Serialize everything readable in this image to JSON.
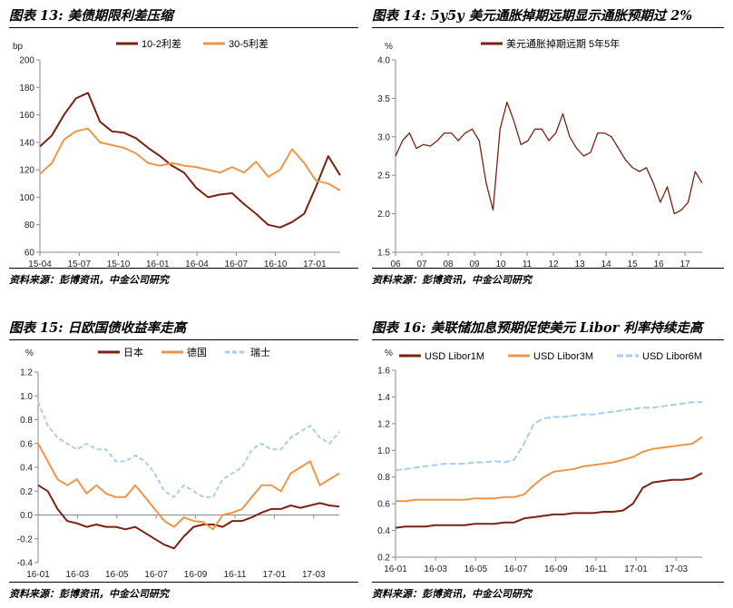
{
  "colors": {
    "dark": "#7b2210",
    "orange": "#f09448",
    "light_blue": "#a9cdec",
    "axis": "#888888"
  },
  "source_label": "资料来源：彭博资讯，中金公司研究",
  "chart_data": [
    {
      "id": "fig13",
      "type": "line",
      "title": "图表 13: 美债期限利差压缩",
      "unit_label": "bp",
      "ylim": [
        60,
        200
      ],
      "yticks": [
        60,
        80,
        100,
        120,
        140,
        160,
        180,
        200
      ],
      "x_tick_labels": [
        "15-04",
        "15-07",
        "15-10",
        "16-01",
        "16-04",
        "16-07",
        "16-10",
        "17-01"
      ],
      "x_count": 26,
      "series": [
        {
          "name": "10-2利差",
          "color": "#7b2210",
          "values": [
            137,
            145,
            160,
            172,
            176,
            155,
            148,
            147,
            143,
            136,
            130,
            123,
            118,
            107,
            100,
            102,
            103,
            95,
            88,
            80,
            78,
            82,
            88,
            108,
            130,
            116
          ]
        },
        {
          "name": "30-5利差",
          "color": "#f09448",
          "values": [
            117,
            125,
            142,
            148,
            150,
            140,
            138,
            136,
            132,
            125,
            123,
            125,
            123,
            122,
            120,
            118,
            122,
            118,
            126,
            115,
            120,
            135,
            125,
            112,
            110,
            105
          ]
        }
      ]
    },
    {
      "id": "fig14",
      "type": "line",
      "title": "图表 14: 5y5y 美元通胀掉期远期显示通胀预期过 2%",
      "unit_label": "%",
      "ylim": [
        1.5,
        4.0
      ],
      "yticks": [
        1.5,
        2.0,
        2.5,
        3.0,
        3.5,
        4.0
      ],
      "x_tick_labels": [
        "06",
        "07",
        "08",
        "09",
        "10",
        "11",
        "12",
        "13",
        "14",
        "15",
        "16",
        "17"
      ],
      "x_count": 45,
      "series": [
        {
          "name": "美元通胀掉期远期 5年5年",
          "color": "#7b2210",
          "values": [
            2.75,
            2.95,
            3.05,
            2.85,
            2.9,
            2.88,
            2.95,
            3.05,
            3.05,
            2.95,
            3.05,
            3.1,
            2.95,
            2.4,
            2.05,
            3.1,
            3.45,
            3.2,
            2.9,
            2.95,
            3.1,
            3.1,
            2.95,
            3.05,
            3.3,
            3.0,
            2.85,
            2.75,
            2.8,
            3.05,
            3.05,
            3.0,
            2.85,
            2.7,
            2.6,
            2.55,
            2.6,
            2.4,
            2.15,
            2.35,
            2.0,
            2.05,
            2.15,
            2.55,
            2.4
          ]
        }
      ]
    },
    {
      "id": "fig15",
      "type": "line",
      "title": "图表 15: 日欧国债收益率走高",
      "unit_label": "%",
      "ylim": [
        -0.4,
        1.2
      ],
      "yticks": [
        -0.4,
        -0.2,
        0.0,
        0.2,
        0.4,
        0.6,
        0.8,
        1.0,
        1.2
      ],
      "x_tick_labels": [
        "16-01",
        "16-03",
        "16-05",
        "16-07",
        "16-09",
        "16-11",
        "17-01",
        "17-03"
      ],
      "x_count": 32,
      "series": [
        {
          "name": "日本",
          "color": "#7b2210",
          "values": [
            0.25,
            0.2,
            0.05,
            -0.05,
            -0.07,
            -0.1,
            -0.08,
            -0.1,
            -0.1,
            -0.12,
            -0.1,
            -0.15,
            -0.2,
            -0.25,
            -0.28,
            -0.18,
            -0.1,
            -0.08,
            -0.08,
            -0.1,
            -0.05,
            -0.05,
            -0.02,
            0.02,
            0.05,
            0.05,
            0.08,
            0.06,
            0.08,
            0.1,
            0.08,
            0.07
          ]
        },
        {
          "name": "德国",
          "color": "#f09448",
          "values": [
            0.6,
            0.45,
            0.3,
            0.25,
            0.3,
            0.18,
            0.25,
            0.18,
            0.15,
            0.15,
            0.25,
            0.15,
            0.05,
            -0.05,
            -0.1,
            -0.02,
            -0.05,
            -0.06,
            -0.12,
            0.0,
            0.02,
            0.05,
            0.15,
            0.25,
            0.25,
            0.2,
            0.35,
            0.4,
            0.45,
            0.25,
            0.3,
            0.35
          ]
        },
        {
          "name": "瑞士",
          "color": "#a9cdec",
          "values": [
            0.95,
            0.75,
            0.65,
            0.6,
            0.55,
            0.6,
            0.55,
            0.55,
            0.45,
            0.45,
            0.5,
            0.45,
            0.35,
            0.2,
            0.15,
            0.25,
            0.2,
            0.15,
            0.15,
            0.3,
            0.35,
            0.4,
            0.55,
            0.6,
            0.55,
            0.55,
            0.65,
            0.7,
            0.75,
            0.65,
            0.6,
            0.7
          ]
        }
      ]
    },
    {
      "id": "fig16",
      "type": "line",
      "title": "图表 16: 美联储加息预期促使美元 Libor 利率持续走高",
      "unit_label": "%",
      "ylim": [
        0.2,
        1.6
      ],
      "yticks": [
        0.2,
        0.4,
        0.6,
        0.8,
        1.0,
        1.2,
        1.4,
        1.6
      ],
      "x_tick_labels": [
        "16-01",
        "16-03",
        "16-05",
        "16-07",
        "16-09",
        "16-11",
        "17-01",
        "17-03"
      ],
      "x_count": 32,
      "series": [
        {
          "name": "USD Libor1M",
          "color": "#7b2210",
          "values": [
            0.42,
            0.43,
            0.43,
            0.43,
            0.44,
            0.44,
            0.44,
            0.44,
            0.45,
            0.45,
            0.45,
            0.46,
            0.46,
            0.49,
            0.5,
            0.51,
            0.52,
            0.52,
            0.53,
            0.53,
            0.53,
            0.54,
            0.54,
            0.55,
            0.6,
            0.72,
            0.76,
            0.77,
            0.78,
            0.78,
            0.79,
            0.83
          ]
        },
        {
          "name": "USD Libor3M",
          "color": "#f09448",
          "values": [
            0.62,
            0.62,
            0.63,
            0.63,
            0.63,
            0.63,
            0.63,
            0.63,
            0.64,
            0.64,
            0.64,
            0.65,
            0.65,
            0.67,
            0.74,
            0.8,
            0.84,
            0.85,
            0.86,
            0.88,
            0.89,
            0.9,
            0.91,
            0.93,
            0.95,
            0.99,
            1.01,
            1.02,
            1.03,
            1.04,
            1.05,
            1.1
          ]
        },
        {
          "name": "USD Libor6M",
          "color": "#a9cdec",
          "values": [
            0.85,
            0.86,
            0.87,
            0.88,
            0.89,
            0.9,
            0.9,
            0.9,
            0.91,
            0.91,
            0.92,
            0.91,
            0.93,
            1.05,
            1.2,
            1.24,
            1.25,
            1.25,
            1.26,
            1.27,
            1.27,
            1.28,
            1.29,
            1.3,
            1.31,
            1.32,
            1.32,
            1.33,
            1.34,
            1.35,
            1.36,
            1.36
          ]
        }
      ]
    }
  ]
}
